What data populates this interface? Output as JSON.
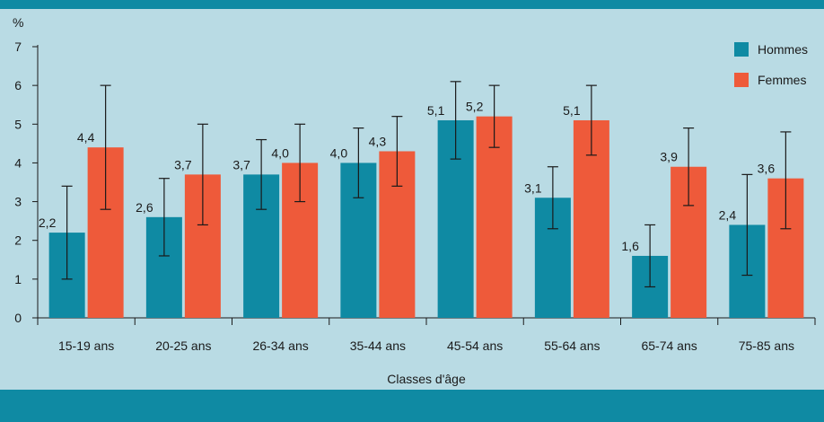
{
  "chart_data": {
    "type": "bar",
    "ylabel": "%",
    "xlabel": "Classes d'âge",
    "ylim": [
      0,
      7
    ],
    "yticks": [
      0,
      1,
      2,
      3,
      4,
      5,
      6,
      7
    ],
    "categories": [
      "15-19 ans",
      "20-25 ans",
      "26-34 ans",
      "35-44 ans",
      "45-54 ans",
      "55-64 ans",
      "65-74 ans",
      "75-85 ans"
    ],
    "series": [
      {
        "name": "Hommes",
        "color": "#0f8aa3",
        "values": [
          2.2,
          2.6,
          3.7,
          4.0,
          5.1,
          3.1,
          1.6,
          2.4
        ],
        "labels": [
          "2,2",
          "2,6",
          "3,7",
          "4,0",
          "5,1",
          "3,1",
          "1,6",
          "2,4"
        ],
        "error_low": [
          1.0,
          1.6,
          2.8,
          3.1,
          4.1,
          2.3,
          0.8,
          1.1
        ],
        "error_high": [
          3.4,
          3.6,
          4.6,
          4.9,
          6.1,
          3.9,
          2.4,
          3.7
        ]
      },
      {
        "name": "Femmes",
        "color": "#ee5a3a",
        "values": [
          4.4,
          3.7,
          4.0,
          4.3,
          5.2,
          5.1,
          3.9,
          3.6
        ],
        "labels": [
          "4,4",
          "3,7",
          "4,0",
          "4,3",
          "5,2",
          "5,1",
          "3,9",
          "3,6"
        ],
        "error_low": [
          2.8,
          2.4,
          3.0,
          3.4,
          4.4,
          4.2,
          2.9,
          2.3
        ],
        "error_high": [
          6.0,
          5.0,
          5.0,
          5.2,
          6.0,
          6.0,
          4.9,
          4.8
        ]
      }
    ],
    "legend": "top-right",
    "grid": false
  }
}
